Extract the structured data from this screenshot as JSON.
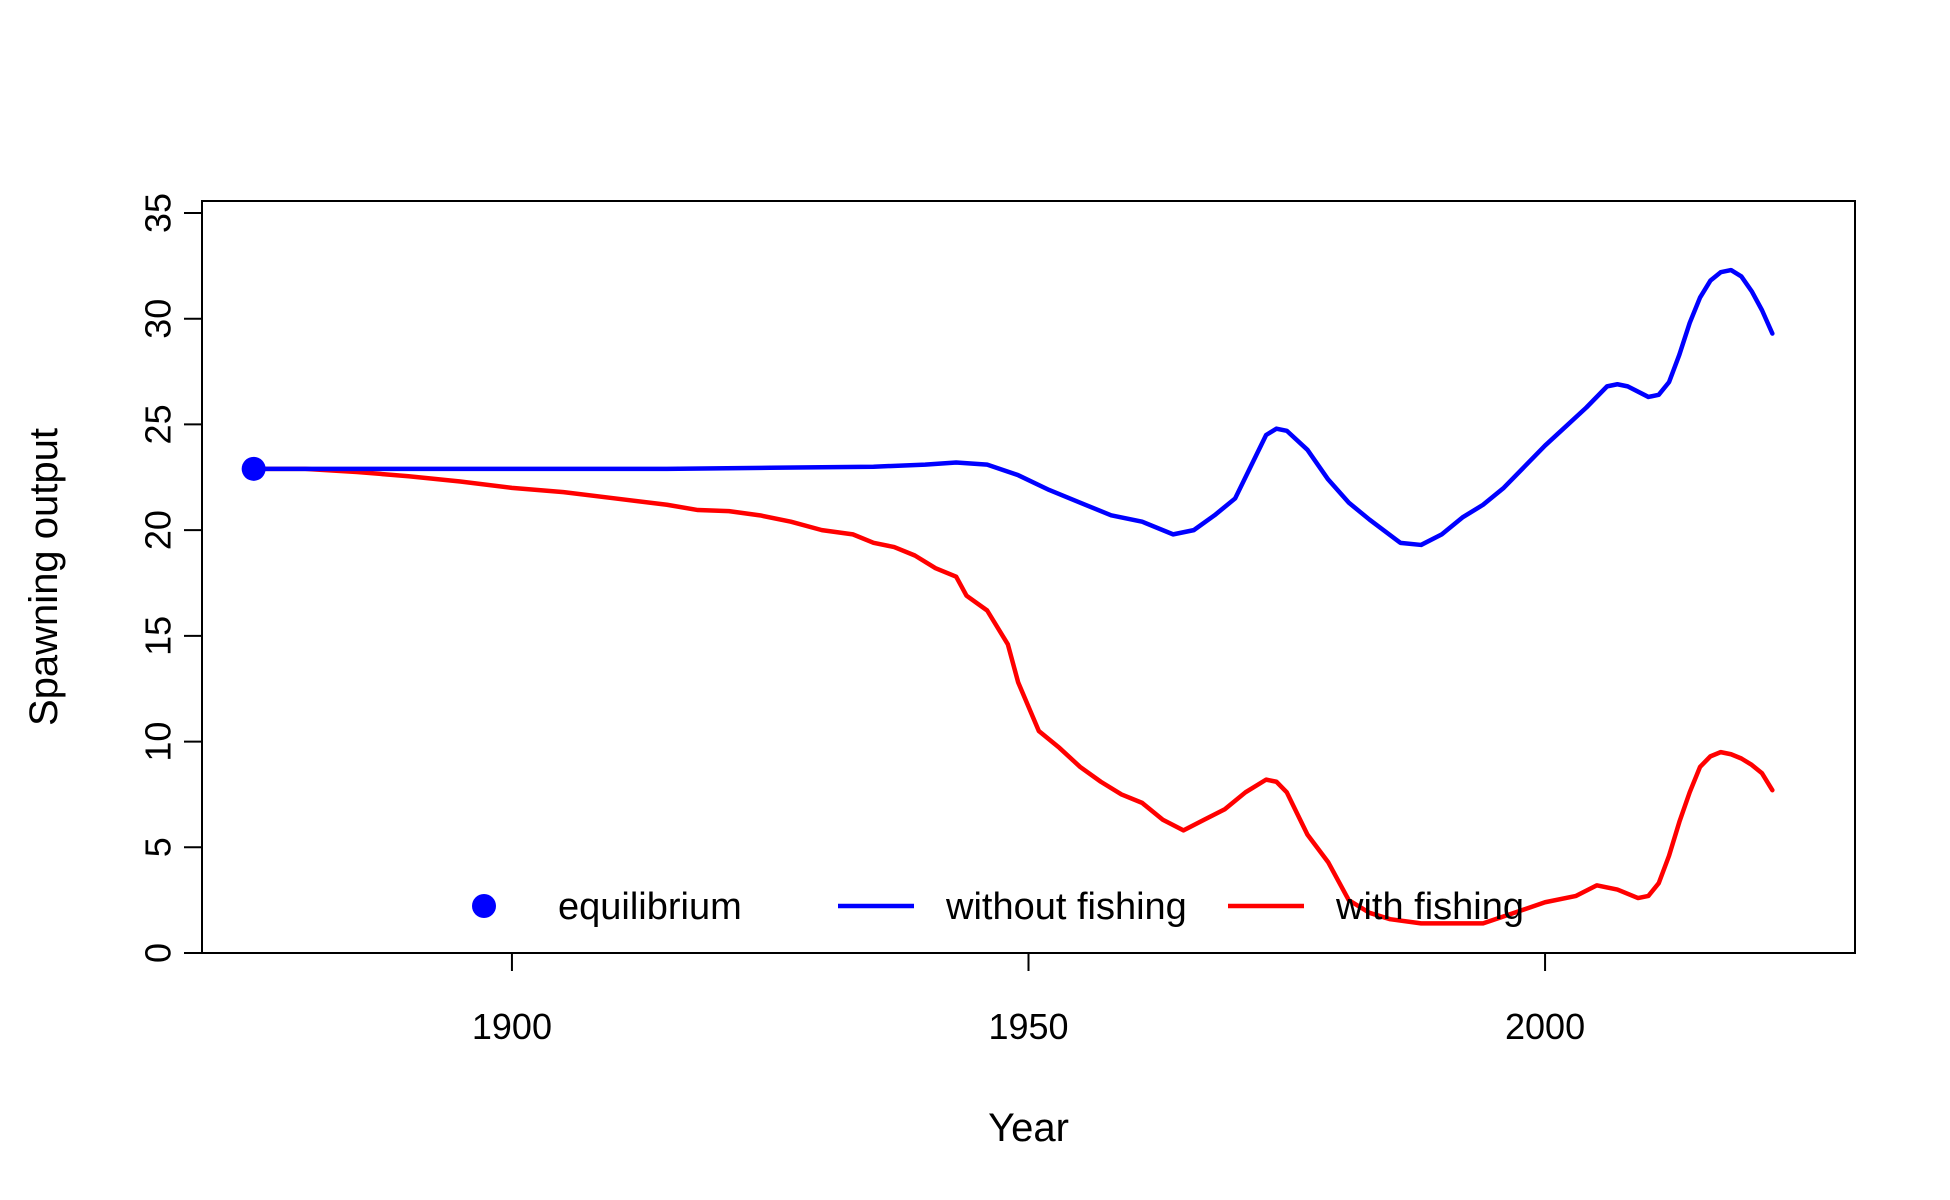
{
  "chart_data": {
    "type": "line",
    "xlabel": "Year",
    "ylabel": "Spawning output",
    "xlim": [
      1870,
      2030
    ],
    "ylim": [
      0,
      35
    ],
    "x_ticks": [
      1900,
      1950,
      2000
    ],
    "y_ticks": [
      0,
      5,
      10,
      15,
      20,
      25,
      30,
      35
    ],
    "legend_position": "bottom-center",
    "equilibrium": {
      "label": "equilibrium",
      "x": 1875,
      "y": 22.9,
      "color": "#0000ff"
    },
    "series": [
      {
        "name": "without fishing",
        "color": "#0000ff",
        "points": [
          [
            1875,
            22.9
          ],
          [
            1885,
            22.9
          ],
          [
            1895,
            22.9
          ],
          [
            1905,
            22.9
          ],
          [
            1915,
            22.9
          ],
          [
            1925,
            22.95
          ],
          [
            1935,
            23.0
          ],
          [
            1940,
            23.1
          ],
          [
            1943,
            23.2
          ],
          [
            1946,
            23.1
          ],
          [
            1949,
            22.6
          ],
          [
            1952,
            21.9
          ],
          [
            1955,
            21.3
          ],
          [
            1958,
            20.7
          ],
          [
            1961,
            20.4
          ],
          [
            1964,
            19.8
          ],
          [
            1966,
            20.0
          ],
          [
            1968,
            20.7
          ],
          [
            1970,
            21.5
          ],
          [
            1972,
            23.5
          ],
          [
            1973,
            24.5
          ],
          [
            1974,
            24.8
          ],
          [
            1975,
            24.7
          ],
          [
            1977,
            23.8
          ],
          [
            1979,
            22.4
          ],
          [
            1981,
            21.3
          ],
          [
            1983,
            20.5
          ],
          [
            1986,
            19.4
          ],
          [
            1988,
            19.3
          ],
          [
            1990,
            19.8
          ],
          [
            1992,
            20.6
          ],
          [
            1994,
            21.2
          ],
          [
            1996,
            22.0
          ],
          [
            1998,
            23.0
          ],
          [
            2000,
            24.0
          ],
          [
            2002,
            24.9
          ],
          [
            2004,
            25.8
          ],
          [
            2006,
            26.8
          ],
          [
            2007,
            26.9
          ],
          [
            2008,
            26.8
          ],
          [
            2010,
            26.3
          ],
          [
            2011,
            26.4
          ],
          [
            2012,
            27.0
          ],
          [
            2013,
            28.3
          ],
          [
            2014,
            29.8
          ],
          [
            2015,
            31.0
          ],
          [
            2016,
            31.8
          ],
          [
            2017,
            32.2
          ],
          [
            2018,
            32.3
          ],
          [
            2019,
            32.0
          ],
          [
            2020,
            31.3
          ],
          [
            2021,
            30.4
          ],
          [
            2022,
            29.3
          ]
        ]
      },
      {
        "name": "with fishing",
        "color": "#ff0000",
        "points": [
          [
            1875,
            22.9
          ],
          [
            1880,
            22.9
          ],
          [
            1885,
            22.75
          ],
          [
            1890,
            22.55
          ],
          [
            1895,
            22.3
          ],
          [
            1900,
            22.0
          ],
          [
            1905,
            21.8
          ],
          [
            1910,
            21.5
          ],
          [
            1915,
            21.2
          ],
          [
            1918,
            20.95
          ],
          [
            1921,
            20.9
          ],
          [
            1924,
            20.7
          ],
          [
            1927,
            20.4
          ],
          [
            1930,
            20.0
          ],
          [
            1933,
            19.8
          ],
          [
            1935,
            19.4
          ],
          [
            1937,
            19.2
          ],
          [
            1939,
            18.8
          ],
          [
            1941,
            18.2
          ],
          [
            1943,
            17.8
          ],
          [
            1944,
            16.9
          ],
          [
            1946,
            16.2
          ],
          [
            1948,
            14.6
          ],
          [
            1949,
            12.8
          ],
          [
            1951,
            10.5
          ],
          [
            1953,
            9.7
          ],
          [
            1955,
            8.8
          ],
          [
            1957,
            8.1
          ],
          [
            1959,
            7.5
          ],
          [
            1961,
            7.1
          ],
          [
            1963,
            6.3
          ],
          [
            1965,
            5.8
          ],
          [
            1967,
            6.3
          ],
          [
            1969,
            6.8
          ],
          [
            1971,
            7.6
          ],
          [
            1973,
            8.2
          ],
          [
            1974,
            8.1
          ],
          [
            1975,
            7.6
          ],
          [
            1976,
            6.6
          ],
          [
            1977,
            5.6
          ],
          [
            1979,
            4.3
          ],
          [
            1981,
            2.5
          ],
          [
            1983,
            1.9
          ],
          [
            1985,
            1.6
          ],
          [
            1988,
            1.4
          ],
          [
            1991,
            1.4
          ],
          [
            1994,
            1.4
          ],
          [
            1997,
            1.9
          ],
          [
            2000,
            2.4
          ],
          [
            2003,
            2.7
          ],
          [
            2005,
            3.2
          ],
          [
            2007,
            3.0
          ],
          [
            2009,
            2.6
          ],
          [
            2010,
            2.7
          ],
          [
            2011,
            3.3
          ],
          [
            2012,
            4.6
          ],
          [
            2013,
            6.2
          ],
          [
            2014,
            7.6
          ],
          [
            2015,
            8.8
          ],
          [
            2016,
            9.3
          ],
          [
            2017,
            9.5
          ],
          [
            2018,
            9.4
          ],
          [
            2019,
            9.2
          ],
          [
            2020,
            8.9
          ],
          [
            2021,
            8.5
          ],
          [
            2022,
            7.7
          ]
        ]
      }
    ]
  }
}
